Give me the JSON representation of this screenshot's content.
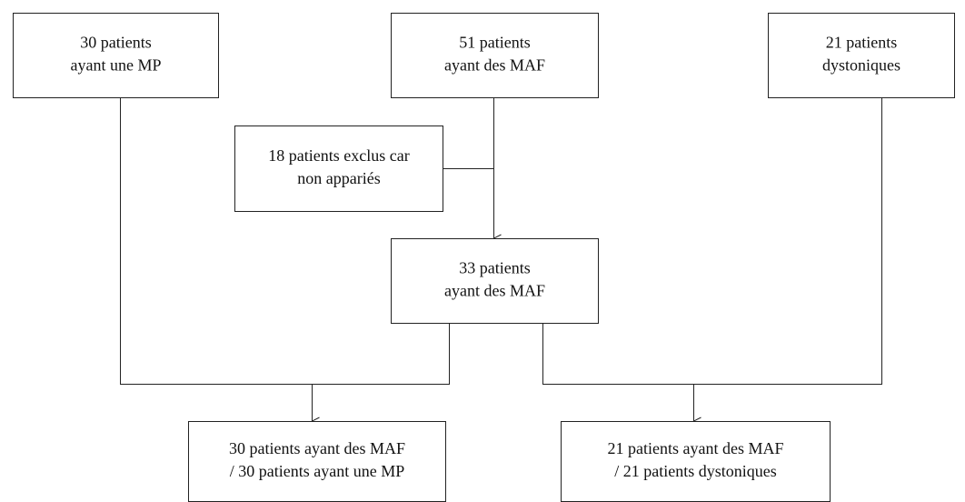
{
  "nodes": [
    {
      "lines": [
        "30 patients",
        "ayant une MP"
      ]
    },
    {
      "lines": [
        "51 patients",
        "ayant des MAF"
      ]
    },
    {
      "lines": [
        "21 patients",
        "dystoniques"
      ]
    },
    {
      "lines": [
        "18 patients exclus car",
        "non appariés"
      ]
    },
    {
      "lines": [
        "33 patients",
        "ayant des MAF"
      ]
    },
    {
      "lines": [
        "30 patients ayant des MAF",
        "/ 30 patients ayant une MP"
      ]
    },
    {
      "lines": [
        "21 patients ayant des MAF",
        "/ 21 patients dystoniques"
      ]
    }
  ]
}
